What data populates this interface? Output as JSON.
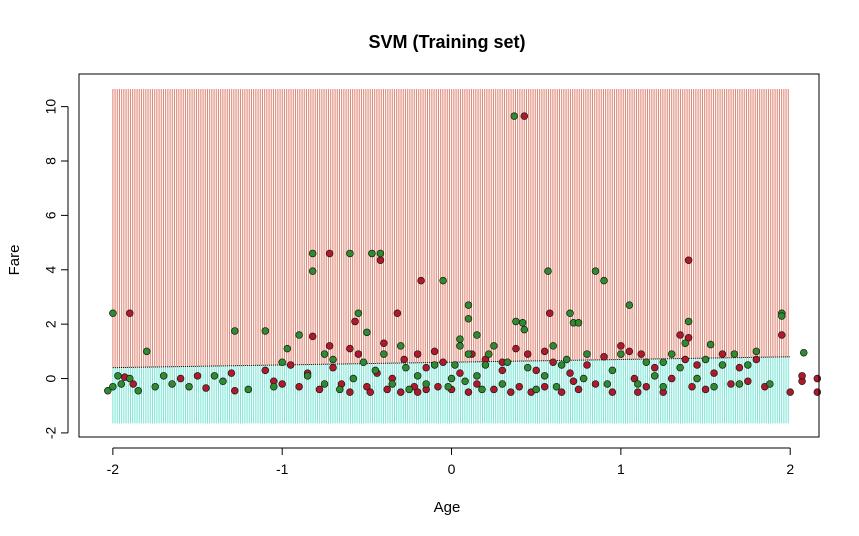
{
  "chart_data": {
    "type": "scatter",
    "title": "SVM (Training set)",
    "xlabel": "Age",
    "ylabel": "Fare",
    "xlim": [
      -2.2,
      2.17
    ],
    "ylim": [
      -2.15,
      11.2
    ],
    "xticks": [
      -2,
      -1,
      0,
      1,
      2
    ],
    "yticks": [
      -2,
      0,
      2,
      4,
      6,
      8,
      10
    ],
    "grid": false,
    "legend": "none",
    "colors": {
      "region_class_0": "#e08a7a",
      "region_class_1": "#7fe6d6",
      "point_class_0": "#b2182b",
      "point_class_1": "#2e8b2e",
      "boundary": "#000000"
    },
    "background_region": {
      "x_range": [
        -2,
        2
      ],
      "y_range": [
        -1.65,
        10.65
      ]
    },
    "decision_boundary": {
      "x": [
        -2,
        -1.5,
        -1,
        -0.5,
        0,
        0.5,
        1,
        1.5,
        2
      ],
      "y": [
        0.4,
        0.45,
        0.5,
        0.55,
        0.6,
        0.65,
        0.7,
        0.75,
        0.8
      ]
    },
    "series": [
      {
        "class": 0,
        "points": [
          [
            -1.9,
            2.4
          ],
          [
            -1.93,
            0.05
          ],
          [
            -1.88,
            -0.2
          ],
          [
            -1.6,
            0.0
          ],
          [
            -1.45,
            -0.35
          ],
          [
            -1.3,
            0.2
          ],
          [
            -1.28,
            -0.45
          ],
          [
            -1.1,
            0.3
          ],
          [
            -1.05,
            -0.1
          ],
          [
            -0.95,
            0.5
          ],
          [
            -0.9,
            -0.3
          ],
          [
            -0.82,
            1.55
          ],
          [
            -0.78,
            -0.4
          ],
          [
            -0.72,
            4.6
          ],
          [
            -0.72,
            1.2
          ],
          [
            -0.7,
            0.4
          ],
          [
            -0.65,
            -0.2
          ],
          [
            -0.6,
            -0.5
          ],
          [
            -0.57,
            2.1
          ],
          [
            -0.55,
            0.9
          ],
          [
            -0.5,
            -0.3
          ],
          [
            -0.48,
            -0.5
          ],
          [
            -0.44,
            0.2
          ],
          [
            -0.42,
            4.35
          ],
          [
            -0.4,
            1.3
          ],
          [
            -0.38,
            -0.4
          ],
          [
            -0.35,
            0.0
          ],
          [
            -0.32,
            2.4
          ],
          [
            -0.3,
            -0.5
          ],
          [
            -0.28,
            0.7
          ],
          [
            -0.22,
            -0.3
          ],
          [
            -0.2,
            -0.5
          ],
          [
            -0.18,
            3.6
          ],
          [
            -0.15,
            0.4
          ],
          [
            -0.1,
            1.0
          ],
          [
            -0.08,
            -0.3
          ],
          [
            -0.05,
            0.6
          ],
          [
            0.0,
            -0.4
          ],
          [
            0.05,
            0.2
          ],
          [
            0.1,
            -0.5
          ],
          [
            0.12,
            0.9
          ],
          [
            0.15,
            -0.2
          ],
          [
            0.2,
            0.7
          ],
          [
            0.25,
            -0.4
          ],
          [
            0.3,
            0.3
          ],
          [
            0.35,
            -0.5
          ],
          [
            0.38,
            1.1
          ],
          [
            0.4,
            -0.3
          ],
          [
            0.43,
            9.65
          ],
          [
            0.45,
            0.9
          ],
          [
            0.47,
            -0.5
          ],
          [
            0.5,
            0.3
          ],
          [
            0.55,
            -0.3
          ],
          [
            0.58,
            2.4
          ],
          [
            0.6,
            0.6
          ],
          [
            0.65,
            -0.5
          ],
          [
            0.7,
            0.2
          ],
          [
            0.75,
            -0.4
          ],
          [
            0.8,
            0.5
          ],
          [
            0.85,
            -0.2
          ],
          [
            0.9,
            0.8
          ],
          [
            0.95,
            -0.5
          ],
          [
            1.0,
            1.2
          ],
          [
            1.05,
            1.0
          ],
          [
            1.08,
            0.0
          ],
          [
            1.12,
            0.9
          ],
          [
            1.15,
            -0.3
          ],
          [
            1.2,
            0.4
          ],
          [
            1.25,
            -0.5
          ],
          [
            1.3,
            0.0
          ],
          [
            1.35,
            1.6
          ],
          [
            1.38,
            0.7
          ],
          [
            1.42,
            -0.3
          ],
          [
            1.45,
            0.5
          ],
          [
            1.5,
            -0.4
          ],
          [
            1.55,
            0.2
          ],
          [
            1.6,
            0.9
          ],
          [
            1.65,
            -0.2
          ],
          [
            1.7,
            0.4
          ],
          [
            1.75,
            -0.1
          ],
          [
            1.8,
            0.7
          ],
          [
            1.85,
            -0.3
          ],
          [
            1.95,
            1.6
          ],
          [
            2.0,
            -0.5
          ],
          [
            2.07,
            -0.1
          ],
          [
            2.07,
            0.1
          ],
          [
            2.16,
            0.0
          ],
          [
            2.16,
            -0.5
          ],
          [
            1.4,
            4.35
          ],
          [
            1.4,
            1.5
          ],
          [
            0.55,
            1.0
          ],
          [
            -0.6,
            1.1
          ],
          [
            -1.0,
            -0.2
          ],
          [
            -1.5,
            0.1
          ],
          [
            -0.2,
            0.9
          ],
          [
            0.3,
            0.6
          ],
          [
            -0.85,
            0.2
          ],
          [
            0.72,
            -0.1
          ],
          [
            1.1,
            -0.5
          ],
          [
            -0.15,
            -0.4
          ]
        ]
      },
      {
        "class": 1,
        "points": [
          [
            -2.0,
            2.4
          ],
          [
            -2.03,
            -0.45
          ],
          [
            -2.0,
            -0.3
          ],
          [
            -1.97,
            0.1
          ],
          [
            -1.95,
            -0.2
          ],
          [
            -1.9,
            0.0
          ],
          [
            -1.85,
            -0.45
          ],
          [
            -1.8,
            1.0
          ],
          [
            -1.75,
            -0.3
          ],
          [
            -1.7,
            0.1
          ],
          [
            -1.65,
            -0.2
          ],
          [
            -1.55,
            -0.3
          ],
          [
            -1.4,
            0.1
          ],
          [
            -1.35,
            -0.1
          ],
          [
            -1.28,
            1.75
          ],
          [
            -1.2,
            -0.4
          ],
          [
            -1.1,
            1.75
          ],
          [
            -1.05,
            -0.3
          ],
          [
            -1.0,
            0.6
          ],
          [
            -0.97,
            1.1
          ],
          [
            -0.9,
            1.6
          ],
          [
            -0.85,
            0.1
          ],
          [
            -0.82,
            4.6
          ],
          [
            -0.82,
            3.95
          ],
          [
            -0.75,
            -0.2
          ],
          [
            -0.7,
            0.7
          ],
          [
            -0.66,
            -0.4
          ],
          [
            -0.6,
            4.6
          ],
          [
            -0.58,
            0.0
          ],
          [
            -0.55,
            2.4
          ],
          [
            -0.52,
            0.6
          ],
          [
            -0.5,
            1.7
          ],
          [
            -0.47,
            4.6
          ],
          [
            -0.42,
            4.6
          ],
          [
            -0.4,
            0.9
          ],
          [
            -0.35,
            -0.2
          ],
          [
            -0.3,
            1.2
          ],
          [
            -0.27,
            0.4
          ],
          [
            -0.25,
            -0.4
          ],
          [
            -0.2,
            0.1
          ],
          [
            -0.15,
            -0.2
          ],
          [
            -0.1,
            0.5
          ],
          [
            -0.05,
            3.6
          ],
          [
            -0.02,
            -0.3
          ],
          [
            0.02,
            0.5
          ],
          [
            0.05,
            1.2
          ],
          [
            0.05,
            1.45
          ],
          [
            0.08,
            -0.1
          ],
          [
            0.1,
            0.9
          ],
          [
            0.1,
            2.2
          ],
          [
            0.15,
            0.1
          ],
          [
            0.18,
            -0.4
          ],
          [
            0.2,
            0.5
          ],
          [
            0.22,
            0.9
          ],
          [
            0.25,
            1.2
          ],
          [
            0.3,
            -0.2
          ],
          [
            0.33,
            0.6
          ],
          [
            0.37,
            9.65
          ],
          [
            0.38,
            2.1
          ],
          [
            0.42,
            2.05
          ],
          [
            0.43,
            1.8
          ],
          [
            0.45,
            0.4
          ],
          [
            0.5,
            -0.4
          ],
          [
            0.55,
            0.1
          ],
          [
            0.57,
            3.95
          ],
          [
            0.6,
            1.2
          ],
          [
            0.62,
            -0.3
          ],
          [
            0.65,
            0.5
          ],
          [
            0.7,
            2.4
          ],
          [
            0.72,
            2.05
          ],
          [
            0.75,
            2.05
          ],
          [
            0.78,
            0.0
          ],
          [
            0.8,
            0.9
          ],
          [
            0.85,
            3.95
          ],
          [
            0.9,
            3.6
          ],
          [
            0.92,
            -0.2
          ],
          [
            0.95,
            0.3
          ],
          [
            1.0,
            0.9
          ],
          [
            1.05,
            2.7
          ],
          [
            1.1,
            -0.2
          ],
          [
            1.15,
            0.6
          ],
          [
            1.2,
            0.1
          ],
          [
            1.25,
            -0.3
          ],
          [
            1.3,
            0.9
          ],
          [
            1.35,
            0.4
          ],
          [
            1.38,
            1.3
          ],
          [
            1.4,
            2.1
          ],
          [
            1.45,
            0.0
          ],
          [
            1.5,
            0.7
          ],
          [
            1.53,
            1.25
          ],
          [
            1.55,
            -0.3
          ],
          [
            1.6,
            0.5
          ],
          [
            1.67,
            0.9
          ],
          [
            1.7,
            -0.2
          ],
          [
            1.75,
            0.5
          ],
          [
            1.8,
            1.0
          ],
          [
            1.88,
            -0.2
          ],
          [
            1.95,
            2.4
          ],
          [
            1.95,
            2.3
          ],
          [
            2.08,
            0.95
          ],
          [
            0.15,
            1.6
          ],
          [
            0.1,
            2.7
          ],
          [
            -0.75,
            0.9
          ],
          [
            1.25,
            0.6
          ],
          [
            0.0,
            0.0
          ],
          [
            -0.45,
            0.3
          ],
          [
            0.68,
            0.7
          ]
        ]
      }
    ]
  }
}
